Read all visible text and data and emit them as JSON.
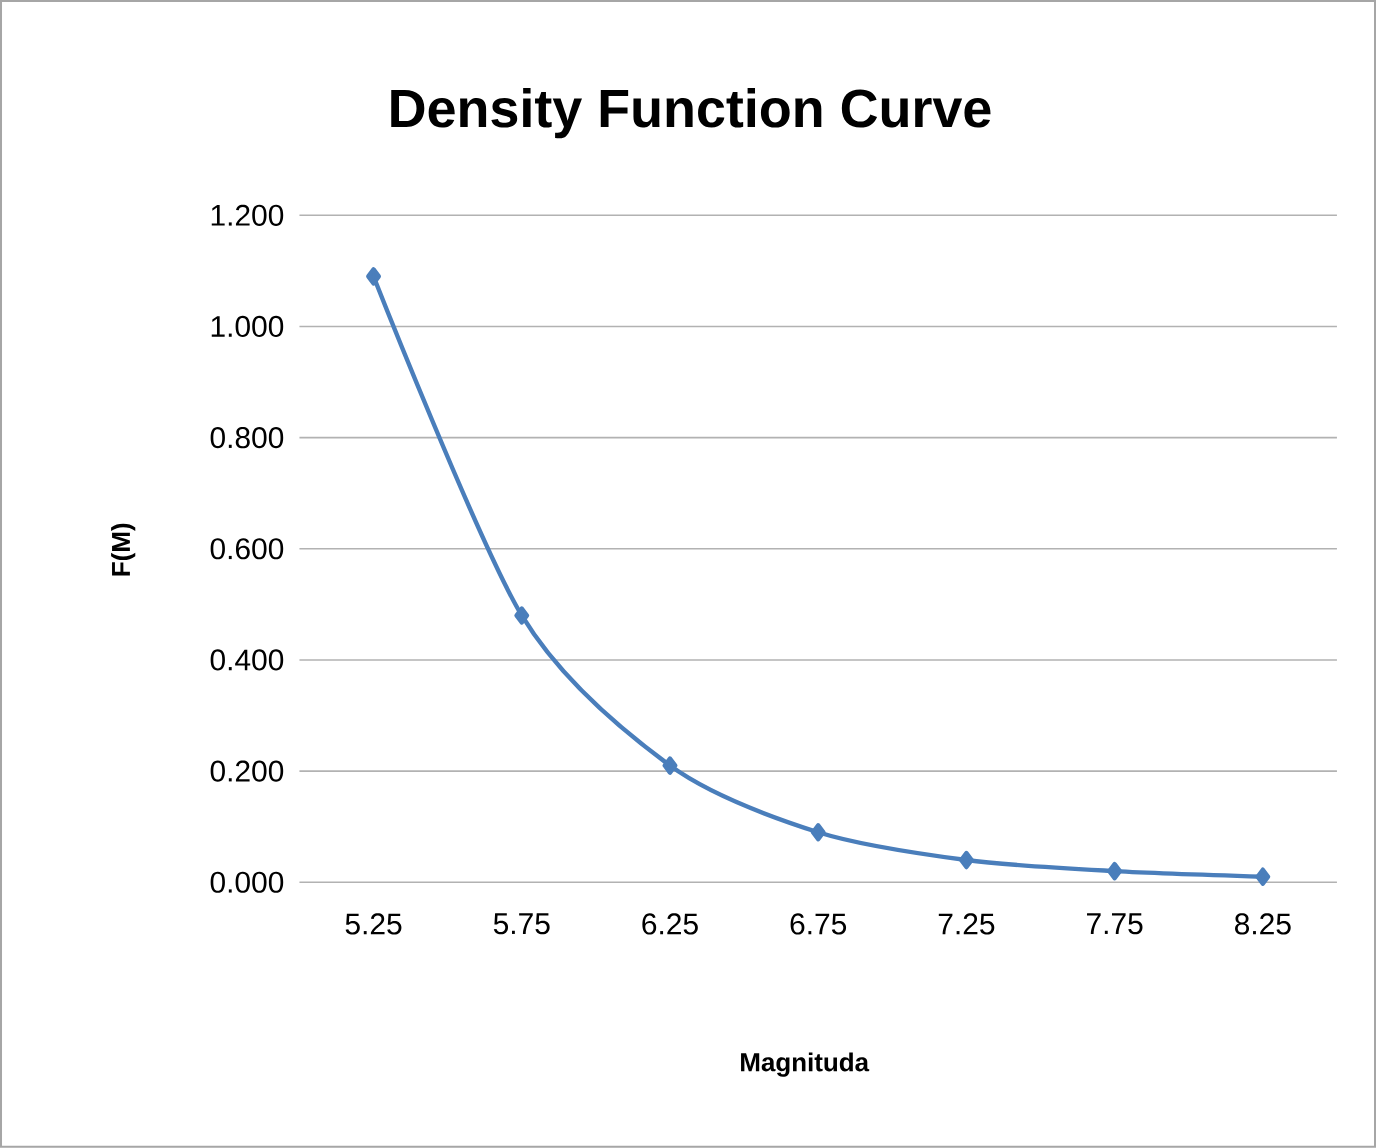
{
  "chart_data": {
    "type": "line",
    "title": "Density Function Curve",
    "xlabel": "Magnituda",
    "ylabel": "F(M)",
    "categories": [
      "5.25",
      "5.75",
      "6.25",
      "6.75",
      "7.25",
      "7.75",
      "8.25"
    ],
    "series": [
      {
        "color": "#4a7ebb",
        "values": [
          1.09,
          0.48,
          0.21,
          0.09,
          0.04,
          0.02,
          0.01
        ]
      }
    ],
    "ylim": [
      0,
      1.2
    ],
    "yticks": [
      {
        "value": 0,
        "label": "0.000"
      },
      {
        "value": 0.2,
        "label": "0.200"
      },
      {
        "value": 0.4,
        "label": "0.400"
      },
      {
        "value": 0.6,
        "label": "0.600"
      },
      {
        "value": 0.8,
        "label": "0.800"
      },
      {
        "value": 1.0,
        "label": "1.000"
      },
      {
        "value": 1.2,
        "label": "1.200"
      }
    ],
    "grid": "y",
    "marker": "diamond",
    "line_style": "solid"
  }
}
